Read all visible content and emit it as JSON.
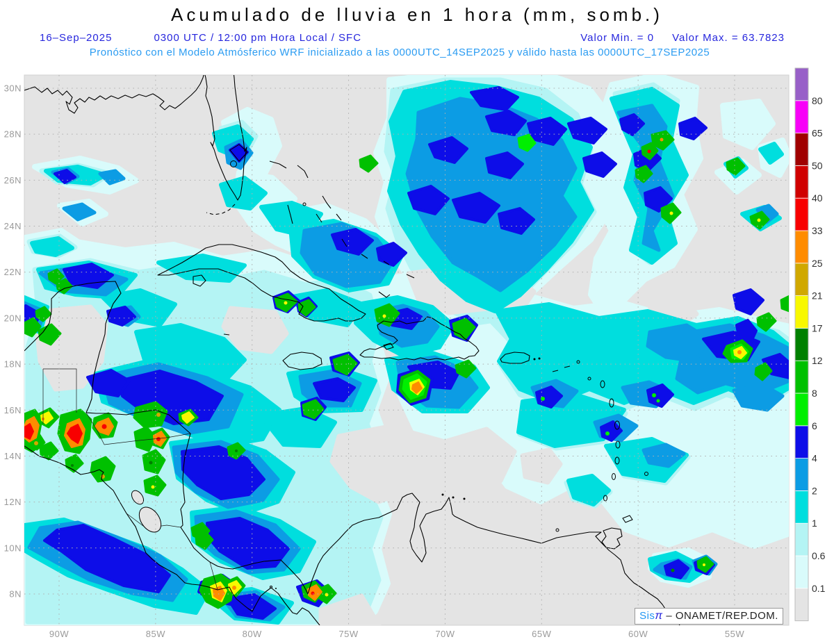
{
  "header": {
    "title": "Acumulado de lluvia en 1 hora (mm, somb.)",
    "date": "16–Sep–2025",
    "valid_time": "0300 UTC / 12:00 pm Hora Local / SFC",
    "min_label": "Valor Min. = 0",
    "max_label": "Valor Max. = 63.7823",
    "model_line": "Pronóstico con el Modelo Atmósferico WRF inicializado a las 0000UTC_14SEP2025 y válido hasta las  0000UTC_17SEP2025"
  },
  "map": {
    "lat_labels": [
      "30N",
      "28N",
      "26N",
      "24N",
      "22N",
      "20N",
      "18N",
      "16N",
      "14N",
      "12N",
      "10N",
      "8N"
    ],
    "lon_labels": [
      "90W",
      "85W",
      "80W",
      "75W",
      "70W",
      "65W",
      "60W",
      "55W"
    ],
    "precip_summary": [
      "Large rain shield 22N-30N between 57W-75W, cores 4-8 mm",
      "Heavy convection over Honduras/Nicaragua/Guatemala with cells 25-50 mm",
      "Cells 17-33 mm over Panama and Darien",
      "Cell 25-33 mm south of Hispaniola near 71.5W 17N",
      "Large 2-6 mm area east of Lesser Antilles near 18N 53-58W with 21-33 mm core",
      "Widespread 0.1-2 mm over western Caribbean and Gulf of Honduras"
    ]
  },
  "legend": {
    "tick_labels": [
      "0.1",
      "0.6",
      "1",
      "2",
      "4",
      "6",
      "8",
      "12",
      "17",
      "21",
      "25",
      "33",
      "40",
      "50",
      "65",
      "80"
    ],
    "colors_bottom_to_top": [
      "#e4e4e4",
      "#d9fbfb",
      "#b4f4f4",
      "#00dede",
      "#0c9ce4",
      "#0d0de8",
      "#00ef00",
      "#00c000",
      "#008000",
      "#f8f800",
      "#d0a800",
      "#ff8c00",
      "#f80000",
      "#d00000",
      "#a00000",
      "#f800f8",
      "#9860c8"
    ]
  },
  "credit": {
    "brand": "Sis",
    "brand_symbol": "π",
    "suffix": "–  ONAMET/REP.DOM."
  },
  "colors": {
    "header_blue": "#2626dd",
    "model_line_blue": "#2b9cf2",
    "axis_gray": "#9a9a9a",
    "map_background": "#e4e4e4",
    "coastline": "#000000",
    "page_background": "#ffffff"
  }
}
